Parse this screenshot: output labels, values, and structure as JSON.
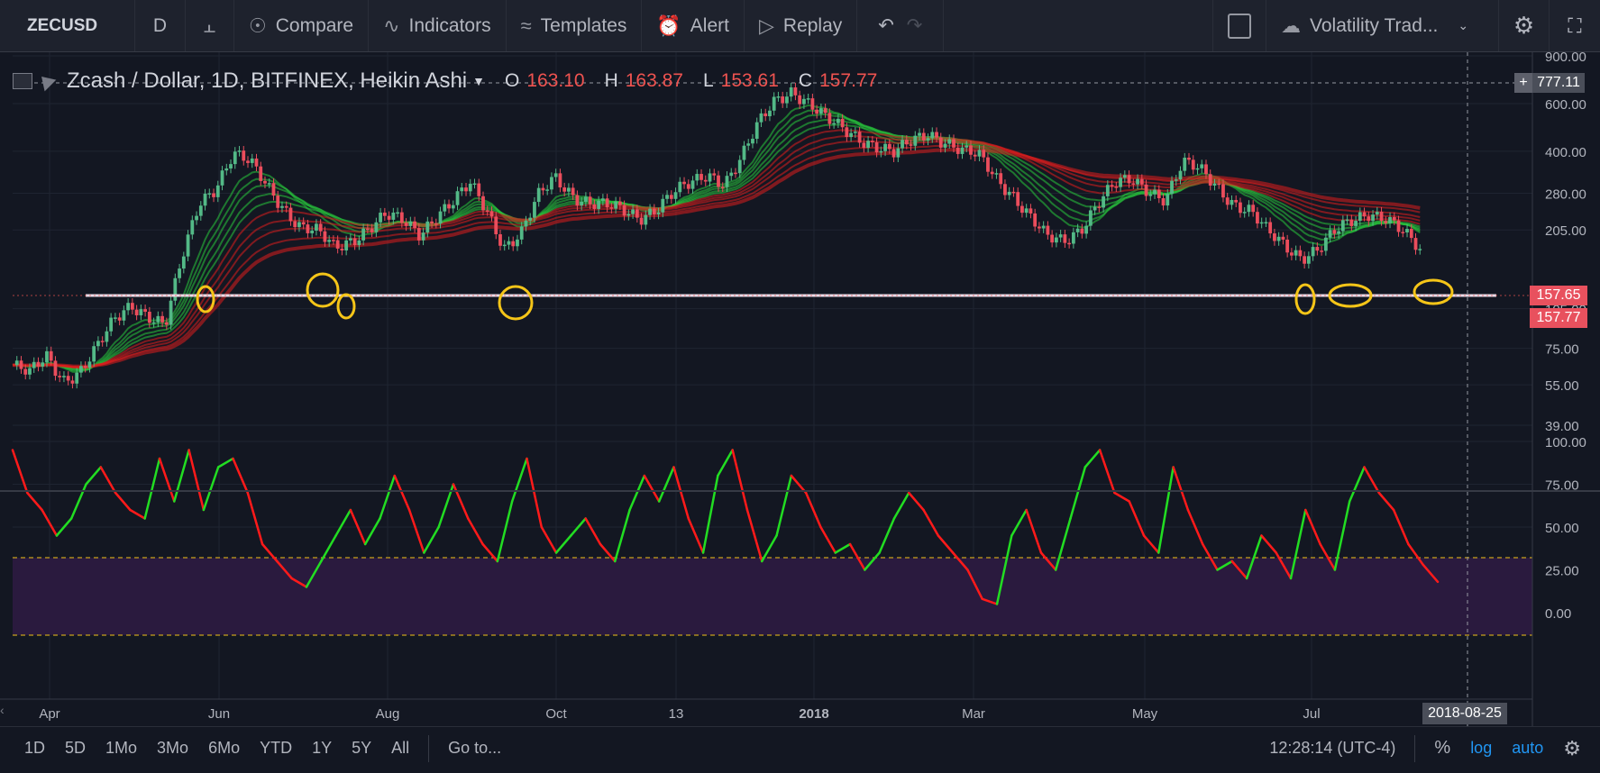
{
  "toolbar": {
    "symbol": "ZECUSD",
    "interval": "D",
    "compare": "Compare",
    "indicators": "Indicators",
    "templates": "Templates",
    "alert": "Alert",
    "replay": "Replay",
    "layout_name": "Volatility Trad..."
  },
  "legend": {
    "title": "Zcash / Dollar, 1D, BITFINEX, Heikin Ashi",
    "open_label": "O",
    "open": "163.10",
    "high_label": "H",
    "high": "163.87",
    "low_label": "L",
    "low": "153.61",
    "close_label": "C",
    "close": "157.77"
  },
  "price_tags": {
    "crosshair": "777.11",
    "line": "157.65",
    "last": "157.77"
  },
  "date_tag": "2018-08-25",
  "bottom": {
    "ranges": [
      "1D",
      "5D",
      "1Mo",
      "3Mo",
      "6Mo",
      "YTD",
      "1Y",
      "5Y",
      "All"
    ],
    "goto": "Go to...",
    "clock": "12:28:14 (UTC-4)",
    "percent": "%",
    "log": "log",
    "auto": "auto"
  },
  "colors": {
    "up": "#53b987",
    "down": "#eb4d5c",
    "rsi_up": "#22dd22",
    "rsi_down": "#ff1a1a",
    "highlight": "#f5c518",
    "accent": "#2196f3"
  },
  "chart_data": [
    {
      "type": "candlestick",
      "title": "Zcash / Dollar, 1D, BITFINEX, Heikin Ashi",
      "scale": "log",
      "y_ticks": [
        900,
        600,
        400,
        280,
        205,
        157.65,
        105,
        75,
        55,
        39
      ],
      "x_ticks": [
        "Apr",
        "Jun",
        "Aug",
        "Oct",
        "13",
        "2018",
        "Mar",
        "May",
        "Jul"
      ],
      "horizontal_line": 157.65,
      "series": [
        {
          "name": "Price",
          "values": [
            65,
            60,
            70,
            58,
            62,
            75,
            95,
            110,
            100,
            90,
            160,
            260,
            300,
            390,
            360,
            300,
            250,
            210,
            200,
            175,
            190,
            210,
            230,
            220,
            200,
            235,
            260,
            300,
            240,
            180,
            200,
            270,
            320,
            280,
            260,
            250,
            240,
            230,
            250,
            280,
            300,
            330,
            310,
            380,
            500,
            620,
            680,
            600,
            520,
            480,
            450,
            420,
            390,
            430,
            470,
            440,
            400,
            380,
            320,
            280,
            230,
            190,
            185,
            210,
            260,
            300,
            310,
            290,
            270,
            360,
            340,
            300,
            260,
            240,
            200,
            180,
            165,
            175,
            200,
            220,
            240,
            230,
            200,
            170
          ]
        }
      ],
      "highlight_circles": 7
    },
    {
      "type": "line",
      "y_ticks": [
        100,
        75,
        50,
        25,
        0
      ],
      "bands": [
        30,
        70
      ],
      "series": [
        {
          "name": "RSI",
          "values": [
            95,
            70,
            60,
            45,
            55,
            75,
            85,
            70,
            60,
            55,
            90,
            65,
            95,
            60,
            85,
            90,
            70,
            40,
            30,
            20,
            15,
            30,
            45,
            60,
            40,
            55,
            80,
            60,
            35,
            50,
            75,
            55,
            40,
            30,
            65,
            90,
            50,
            35,
            45,
            55,
            40,
            30,
            60,
            80,
            65,
            85,
            55,
            35,
            80,
            95,
            60,
            30,
            45,
            80,
            70,
            50,
            35,
            40,
            25,
            35,
            55,
            70,
            60,
            45,
            35,
            25,
            8,
            5,
            45,
            60,
            35,
            25,
            55,
            85,
            95,
            70,
            65,
            45,
            35,
            85,
            60,
            40,
            25,
            30,
            20,
            45,
            35,
            20,
            60,
            40,
            25,
            65,
            85,
            70,
            60,
            40,
            28,
            18
          ]
        }
      ]
    }
  ]
}
